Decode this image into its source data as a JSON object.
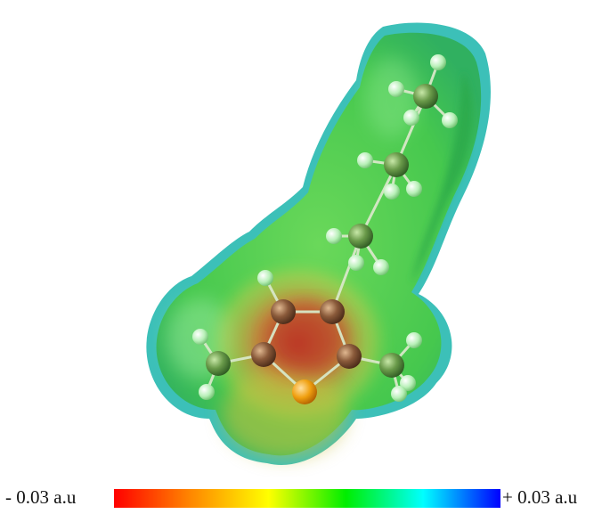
{
  "colorbar": {
    "min_label": "- 0.03 a.u",
    "max_label": "+ 0.03 a.u",
    "colors": [
      "#ff0000",
      "#ff8800",
      "#ffff00",
      "#00ee00",
      "#00ffff",
      "#0000ff"
    ]
  },
  "surface": {
    "dominant_color": "#4ad04a",
    "negative_region_color": "#d2553a",
    "positive_edge_color": "#40c8d8"
  },
  "atoms": {
    "carbon_color": "#6a9a4a",
    "ring_carbon_color": "#8a5a3a",
    "hydrogen_color": "#b8f0b8",
    "sulfur_color": "#f0a010"
  }
}
